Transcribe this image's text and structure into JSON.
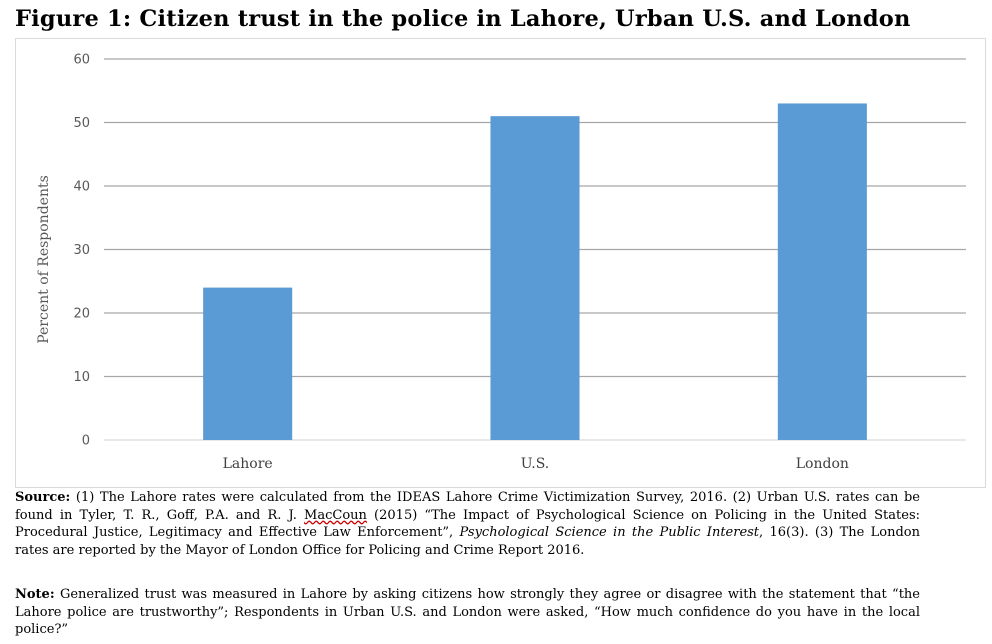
{
  "title": "Figure 1: Citizen trust in the police in Lahore, Urban U.S. and London",
  "chart_data": {
    "type": "bar",
    "categories": [
      "Lahore",
      "U.S.",
      "London"
    ],
    "values": [
      24,
      51,
      53
    ],
    "ylabel": "Percent of Respondents",
    "xlabel": "",
    "ylim": [
      0,
      60
    ],
    "yticks": [
      0,
      10,
      20,
      30,
      40,
      50,
      60
    ],
    "grid": true,
    "bar_color": "#5b9bd5",
    "grid_color": "#a6a6a6"
  },
  "source": {
    "label": "Source:",
    "part1": " (1) The Lahore rates were calculated from the IDEAS Lahore Crime Victimization Survey, 2016. (2) Urban U.S. rates can be found in Tyler, T. R., Goff, P.A. and R. J. ",
    "underlined": "MacCoun",
    "part2": " (2015) “The Impact of Psychological Science on Policing in the United States: Procedural Justice, Legitimacy and Effective Law Enforcement”, ",
    "italic": "Psychological Science in the Public Interest",
    "part3": ", 16(3). (3) The London rates are reported by the Mayor of London Office for Policing and Crime Report 2016."
  },
  "note": {
    "label": "Note:",
    "text": " Generalized trust was measured in Lahore by asking citizens how strongly they agree or disagree with the statement that “the Lahore police are trustworthy”; Respondents in Urban U.S. and London were asked, “How much confidence do you have in the local police?”"
  }
}
